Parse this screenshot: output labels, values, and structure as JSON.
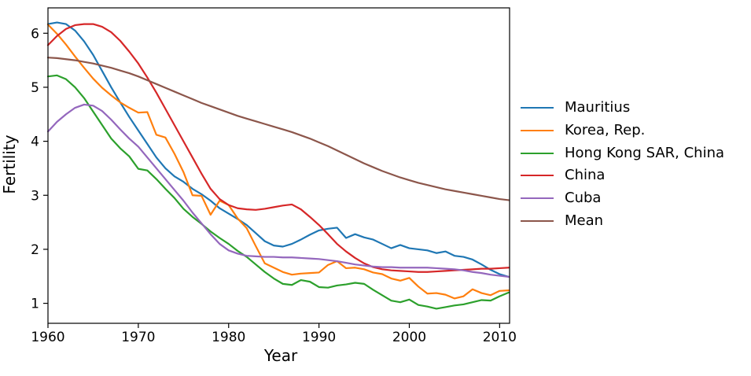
{
  "chart_data": {
    "type": "line",
    "title": "",
    "xlabel": "Year",
    "ylabel": "Fertility",
    "grid": false,
    "legend_position": "right-outside",
    "xlim": [
      1960,
      2011.1
    ],
    "ylim": [
      0.63,
      6.47
    ],
    "xticks": [
      1960,
      1970,
      1980,
      1990,
      2000,
      2010
    ],
    "yticks": [
      1,
      2,
      3,
      4,
      5,
      6
    ],
    "x": [
      1960,
      1961,
      1962,
      1963,
      1964,
      1965,
      1966,
      1967,
      1968,
      1969,
      1970,
      1971,
      1972,
      1973,
      1974,
      1975,
      1976,
      1977,
      1978,
      1979,
      1980,
      1981,
      1982,
      1983,
      1984,
      1985,
      1986,
      1987,
      1988,
      1989,
      1990,
      1991,
      1992,
      1993,
      1994,
      1995,
      1996,
      1997,
      1998,
      1999,
      2000,
      2001,
      2002,
      2003,
      2004,
      2005,
      2006,
      2007,
      2008,
      2009,
      2010,
      2011
    ],
    "series": [
      {
        "name": "Mauritius",
        "color": "#1f77b4",
        "values": [
          6.17,
          6.2,
          6.17,
          6.05,
          5.85,
          5.6,
          5.3,
          5.0,
          4.72,
          4.45,
          4.2,
          3.95,
          3.7,
          3.5,
          3.35,
          3.25,
          3.12,
          3.02,
          2.9,
          2.76,
          2.66,
          2.56,
          2.45,
          2.3,
          2.15,
          2.07,
          2.05,
          2.1,
          2.18,
          2.27,
          2.35,
          2.38,
          2.4,
          2.21,
          2.28,
          2.22,
          2.18,
          2.1,
          2.02,
          2.08,
          2.02,
          2.0,
          1.98,
          1.93,
          1.96,
          1.88,
          1.86,
          1.81,
          1.72,
          1.62,
          1.54,
          1.49
        ]
      },
      {
        "name": "Korea, Rep.",
        "color": "#ff7f0e",
        "values": [
          6.16,
          5.99,
          5.79,
          5.57,
          5.36,
          5.16,
          4.99,
          4.85,
          4.72,
          4.62,
          4.53,
          4.54,
          4.12,
          4.07,
          3.77,
          3.43,
          3.0,
          2.99,
          2.64,
          2.9,
          2.82,
          2.57,
          2.39,
          2.06,
          1.74,
          1.66,
          1.58,
          1.53,
          1.55,
          1.56,
          1.57,
          1.71,
          1.78,
          1.65,
          1.66,
          1.63,
          1.57,
          1.54,
          1.46,
          1.42,
          1.47,
          1.31,
          1.18,
          1.19,
          1.16,
          1.09,
          1.13,
          1.26,
          1.19,
          1.15,
          1.23,
          1.24
        ]
      },
      {
        "name": "Hong Kong SAR, China",
        "color": "#2ca02c",
        "values": [
          5.2,
          5.22,
          5.15,
          5.0,
          4.8,
          4.55,
          4.3,
          4.05,
          3.87,
          3.72,
          3.49,
          3.46,
          3.3,
          3.12,
          2.95,
          2.75,
          2.6,
          2.47,
          2.33,
          2.21,
          2.1,
          1.97,
          1.86,
          1.72,
          1.58,
          1.46,
          1.36,
          1.34,
          1.43,
          1.4,
          1.3,
          1.29,
          1.33,
          1.35,
          1.38,
          1.36,
          1.25,
          1.15,
          1.05,
          1.02,
          1.07,
          0.97,
          0.94,
          0.9,
          0.93,
          0.96,
          0.98,
          1.02,
          1.06,
          1.05,
          1.13,
          1.2
        ]
      },
      {
        "name": "China",
        "color": "#d62728",
        "values": [
          5.78,
          5.95,
          6.08,
          6.15,
          6.17,
          6.17,
          6.12,
          6.02,
          5.86,
          5.66,
          5.44,
          5.18,
          4.9,
          4.6,
          4.3,
          4.0,
          3.7,
          3.4,
          3.12,
          2.93,
          2.82,
          2.76,
          2.74,
          2.73,
          2.75,
          2.78,
          2.81,
          2.83,
          2.74,
          2.6,
          2.45,
          2.28,
          2.1,
          1.96,
          1.84,
          1.74,
          1.67,
          1.63,
          1.61,
          1.6,
          1.59,
          1.58,
          1.58,
          1.59,
          1.6,
          1.61,
          1.62,
          1.63,
          1.64,
          1.64,
          1.65,
          1.66
        ]
      },
      {
        "name": "Cuba",
        "color": "#9467bd",
        "values": [
          4.18,
          4.36,
          4.5,
          4.62,
          4.68,
          4.66,
          4.56,
          4.4,
          4.22,
          4.05,
          3.9,
          3.7,
          3.5,
          3.3,
          3.1,
          2.9,
          2.68,
          2.48,
          2.28,
          2.1,
          1.98,
          1.92,
          1.88,
          1.87,
          1.86,
          1.86,
          1.85,
          1.85,
          1.84,
          1.83,
          1.82,
          1.8,
          1.78,
          1.75,
          1.72,
          1.7,
          1.68,
          1.67,
          1.67,
          1.66,
          1.66,
          1.66,
          1.66,
          1.65,
          1.64,
          1.63,
          1.61,
          1.58,
          1.56,
          1.53,
          1.51,
          1.49
        ]
      },
      {
        "name": "Mean",
        "color": "#8c564b",
        "values": [
          5.55,
          5.54,
          5.52,
          5.5,
          5.47,
          5.44,
          5.4,
          5.36,
          5.31,
          5.26,
          5.2,
          5.13,
          5.06,
          4.99,
          4.92,
          4.85,
          4.78,
          4.71,
          4.65,
          4.59,
          4.53,
          4.47,
          4.42,
          4.37,
          4.32,
          4.27,
          4.22,
          4.17,
          4.11,
          4.05,
          3.98,
          3.91,
          3.83,
          3.75,
          3.67,
          3.59,
          3.52,
          3.45,
          3.39,
          3.33,
          3.28,
          3.23,
          3.19,
          3.15,
          3.11,
          3.08,
          3.05,
          3.02,
          2.99,
          2.96,
          2.93,
          2.91
        ]
      }
    ]
  }
}
